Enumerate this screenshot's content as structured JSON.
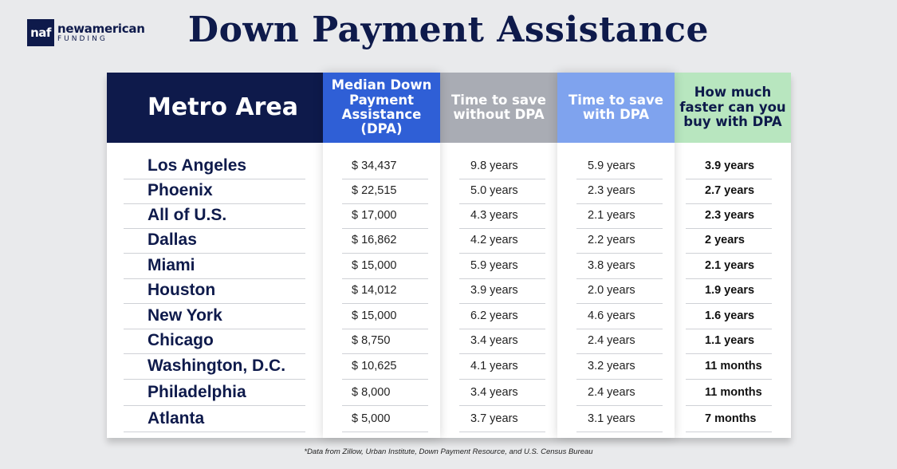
{
  "logo": {
    "mark": "naf",
    "name_top": "newamerican",
    "name_bottom": "FUNDING"
  },
  "title": "Down Payment Assistance",
  "chart_data": {
    "type": "table",
    "title": "Down Payment Assistance",
    "columns": [
      "Metro Area",
      "Median Down Payment Assistance (DPA)",
      "Time to save without DPA",
      "Time to save with DPA",
      "How much faster can you buy with DPA"
    ],
    "rows": [
      [
        "Los Angeles",
        "$ 34,437",
        "9.8 years",
        "5.9 years",
        "3.9 years"
      ],
      [
        "Phoenix",
        "$ 22,515",
        "5.0 years",
        "2.3 years",
        "2.7 years"
      ],
      [
        "All of U.S.",
        "$ 17,000",
        "4.3 years",
        "2.1 years",
        "2.3 years"
      ],
      [
        "Dallas",
        "$ 16,862",
        "4.2 years",
        "2.2 years",
        "2 years"
      ],
      [
        "Miami",
        "$ 15,000",
        "5.9 years",
        "3.8 years",
        "2.1 years"
      ],
      [
        "Houston",
        "$ 14,012",
        "3.9 years",
        "2.0 years",
        "1.9 years"
      ],
      [
        "New York",
        "$ 15,000",
        "6.2 years",
        "4.6 years",
        "1.6 years"
      ],
      [
        "Chicago",
        "$ 8,750",
        "3.4 years",
        "2.4 years",
        "1.1 years"
      ],
      [
        "Washington, D.C.",
        "$ 10,625",
        "4.1 years",
        "3.2 years",
        "11 months"
      ],
      [
        "Philadelphia",
        "$ 8,000",
        "3.4 years",
        "2.4 years",
        "11 months"
      ],
      [
        "Atlanta",
        "$ 5,000",
        "3.7 years",
        "3.1 years",
        "7 months"
      ]
    ],
    "header_colors": [
      "#0e1a4b",
      "#2f5fd6",
      "#a9acb4",
      "#7fa3ee",
      "#b8e6bf"
    ]
  },
  "footnote": "*Data from Zillow, Urban Institute, Down Payment Resource, and U.S. Census Bureau"
}
